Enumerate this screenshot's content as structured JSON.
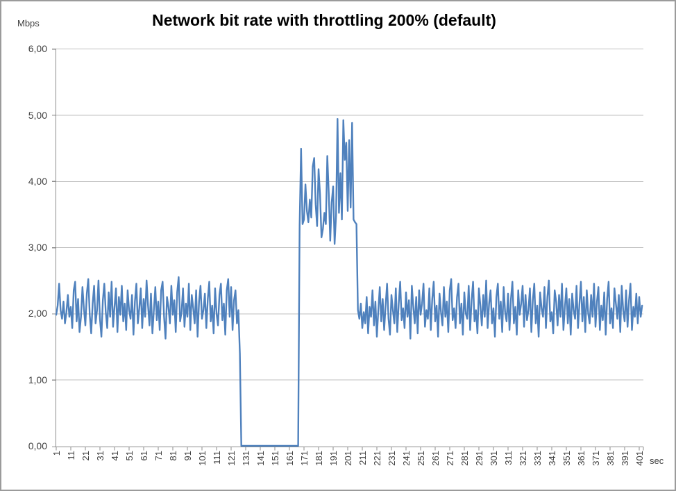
{
  "title": "Network bit rate with throttling 200% (default)",
  "y_unit": "Mbps",
  "x_unit": "sec",
  "colors": {
    "series": "#4F81BD",
    "gridline": "#BFBFBF",
    "axis": "#8C8C8C",
    "tick_label": "#3F3F3F",
    "title": "#000000",
    "border": "#9B9B9B",
    "background": "#FFFFFF"
  },
  "chart_data": {
    "type": "line",
    "title": "Network bit rate with throttling 200% (default)",
    "xlabel": "sec",
    "ylabel": "Mbps",
    "ylim": [
      0,
      6
    ],
    "grid": "horizontal",
    "legend": "none",
    "decimal_separator": "comma",
    "y_tick_labels": [
      "6,00",
      "5,00",
      "4,00",
      "3,00",
      "2,00",
      "1,00",
      "0,00"
    ],
    "y_tick_values": [
      6,
      5,
      4,
      3,
      2,
      1,
      0
    ],
    "x_tick_labels": [
      "1",
      "11",
      "21",
      "31",
      "41",
      "51",
      "61",
      "71",
      "81",
      "91",
      "101",
      "111",
      "121",
      "131",
      "141",
      "151",
      "161",
      "171",
      "181",
      "191",
      "201",
      "211",
      "221",
      "231",
      "241",
      "251",
      "261",
      "271",
      "281",
      "291",
      "301",
      "311",
      "321",
      "331",
      "341",
      "351",
      "361",
      "371",
      "381",
      "391",
      "401"
    ],
    "x_start": 1,
    "x_step": 1,
    "x_tick_interval": 10,
    "series_name": "Network bit rate (Mbps)",
    "annotations": {
      "baseline_mean": 2.0,
      "throttled_zero_interval_sec": [
        128,
        167
      ],
      "boost_interval_sec": [
        168,
        207
      ],
      "boost_peak": 4.94
    },
    "values": [
      1.98,
      2.12,
      2.45,
      2.05,
      1.92,
      2.18,
      1.85,
      2.02,
      2.28,
      1.95,
      2.1,
      1.78,
      2.35,
      2.48,
      1.88,
      2.22,
      1.72,
      1.95,
      2.4,
      2.08,
      1.82,
      2.3,
      2.52,
      1.98,
      1.7,
      2.15,
      2.42,
      1.85,
      2.05,
      2.5,
      1.92,
      1.65,
      2.2,
      2.45,
      2.02,
      1.78,
      2.32,
      1.95,
      2.48,
      1.8,
      2.1,
      2.38,
      1.72,
      2.25,
      1.98,
      2.42,
      1.88,
      2.15,
      1.75,
      2.35,
      2.05,
      1.92,
      2.28,
      1.68,
      2.18,
      2.45,
      1.85,
      2.08,
      2.38,
      1.78,
      2.22,
      1.95,
      2.5,
      2.12,
      1.82,
      2.3,
      1.7,
      2.05,
      2.4,
      1.9,
      2.18,
      1.75,
      2.35,
      2.48,
      1.95,
      1.62,
      2.25,
      2.1,
      1.85,
      2.42,
      1.98,
      2.2,
      1.72,
      2.32,
      2.55,
      1.88,
      2.02,
      2.38,
      1.8,
      2.15,
      1.95,
      2.45,
      1.75,
      2.28,
      2.08,
      1.85,
      2.35,
      1.65,
      2.18,
      2.42,
      1.92,
      2.05,
      2.3,
      1.78,
      2.22,
      2.48,
      1.88,
      2.12,
      1.7,
      2.38,
      2.0,
      1.82,
      2.28,
      2.45,
      1.9,
      2.15,
      1.68,
      2.35,
      2.52,
      1.95,
      2.4,
      1.75,
      2.2,
      2.35,
      1.85,
      2.05,
      1.4,
      0,
      0,
      0,
      0,
      0,
      0,
      0,
      0,
      0,
      0,
      0,
      0,
      0,
      0,
      0,
      0,
      0,
      0,
      0,
      0,
      0,
      0,
      0,
      0,
      0,
      0,
      0,
      0,
      0,
      0,
      0,
      0,
      0,
      0,
      0,
      0,
      0,
      0,
      0,
      0,
      3.33,
      4.49,
      3.35,
      3.42,
      3.95,
      3.55,
      3.38,
      3.72,
      3.45,
      4.22,
      4.35,
      3.65,
      3.32,
      4.18,
      3.8,
      3.15,
      3.28,
      3.52,
      3.35,
      4.38,
      3.82,
      3.1,
      3.68,
      3.92,
      3.05,
      3.48,
      4.94,
      3.52,
      4.12,
      3.42,
      4.92,
      4.32,
      4.58,
      3.55,
      4.62,
      3.6,
      4.88,
      3.42,
      3.38,
      3.35,
      2.05,
      1.92,
      2.15,
      1.78,
      2.02,
      1.85,
      2.25,
      1.7,
      2.1,
      1.95,
      2.35,
      1.82,
      2.18,
      1.65,
      2.05,
      2.4,
      1.88,
      2.22,
      1.75,
      2.12,
      2.45,
      1.92,
      1.68,
      2.28,
      2.05,
      1.85,
      2.38,
      1.72,
      2.15,
      2.48,
      1.9,
      2.08,
      1.78,
      2.32,
      1.95,
      2.2,
      1.62,
      2.42,
      2.1,
      1.85,
      2.25,
      1.7,
      2.35,
      1.98,
      2.15,
      2.45,
      1.8,
      2.05,
      1.92,
      2.38,
      1.75,
      2.22,
      2.48,
      1.88,
      2.12,
      1.65,
      2.3,
      2.02,
      1.82,
      2.4,
      1.95,
      2.18,
      1.72,
      2.35,
      2.52,
      1.9,
      2.08,
      1.78,
      2.25,
      2.45,
      1.85,
      2.15,
      1.68,
      2.32,
      2.0,
      1.92,
      2.42,
      1.75,
      2.2,
      2.48,
      1.88,
      2.05,
      1.7,
      2.38,
      2.12,
      1.82,
      2.28,
      1.95,
      2.5,
      1.78,
      2.15,
      2.35,
      1.85,
      2.08,
      1.65,
      2.25,
      2.45,
      1.92,
      2.18,
      1.72,
      2.4,
      2.02,
      1.88,
      2.3,
      1.75,
      2.22,
      2.48,
      1.85,
      2.1,
      1.68,
      2.35,
      1.98,
      2.15,
      2.42,
      1.8,
      2.28,
      1.9,
      2.05,
      2.38,
      1.72,
      2.2,
      2.45,
      1.85,
      2.12,
      1.65,
      2.32,
      2.08,
      1.95,
      2.4,
      1.78,
      2.25,
      2.5,
      1.88,
      2.02,
      1.7,
      2.35,
      2.18,
      1.82,
      2.28,
      1.95,
      2.45,
      1.75,
      2.1,
      2.38,
      1.85,
      2.22,
      1.68,
      2.3,
      2.05,
      1.92,
      2.42,
      1.78,
      2.15,
      2.48,
      1.88,
      2.25,
      1.72,
      2.35,
      2.0,
      1.85,
      2.28,
      1.95,
      2.45,
      1.8,
      2.18,
      2.4,
      1.75,
      2.12,
      1.9,
      2.32,
      1.68,
      2.22,
      2.48,
      1.85,
      2.08,
      1.78,
      2.38,
      2.15,
      1.92,
      2.28,
      1.72,
      2.42,
      2.05,
      1.88,
      2.35,
      1.8,
      2.2,
      2.45,
      1.75,
      2.1,
      1.95,
      2.3,
      1.85,
      2.25,
      1.95,
      2.12
    ]
  }
}
